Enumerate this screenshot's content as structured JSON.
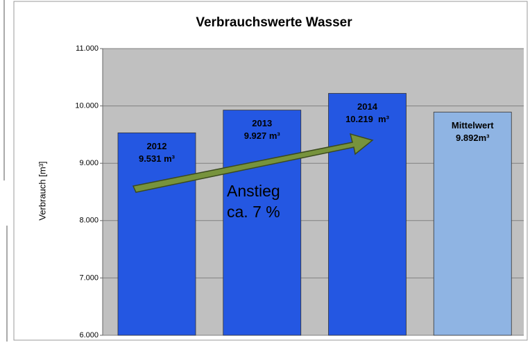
{
  "chart_data": {
    "type": "bar",
    "title": "Verbrauchswerte Wasser",
    "y_label": "Verbrauch [m³]",
    "categories": [
      "2012",
      "2013",
      "2014",
      "Mittelwert"
    ],
    "values": [
      9531,
      9927,
      10219,
      9892
    ],
    "value_labels": [
      "9.531 m³",
      "9.927 m³",
      "10.219  m³",
      "9.892m³"
    ],
    "colors": [
      "#2457e2",
      "#2457e2",
      "#2457e2",
      "#8fb4e3"
    ],
    "ylim": [
      6000,
      11000
    ],
    "yticks": [
      {
        "value": 6000,
        "label": "6.000"
      },
      {
        "value": 7000,
        "label": "7.000"
      },
      {
        "value": 8000,
        "label": "8.000"
      },
      {
        "value": 9000,
        "label": "9.000"
      },
      {
        "value": 10000,
        "label": "10.000"
      },
      {
        "value": 11000,
        "label": "11.000"
      }
    ],
    "grid": true,
    "annotation": [
      "Anstieg",
      "ca. 7 %"
    ]
  }
}
